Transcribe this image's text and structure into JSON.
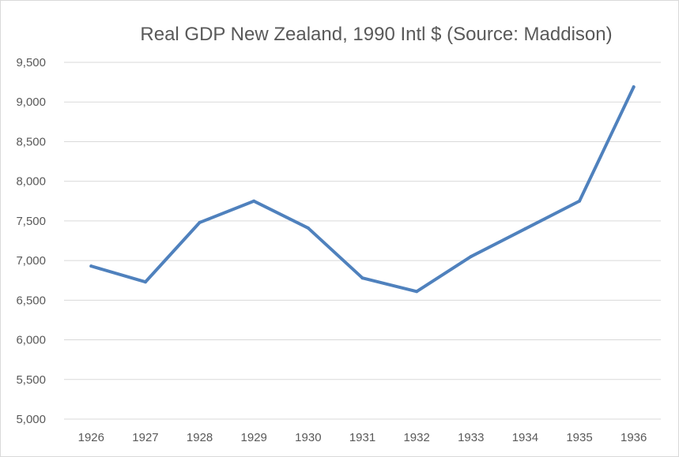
{
  "chart_data": {
    "type": "line",
    "title": "Real GDP New Zealand, 1990 Intl $ (Source: Maddison)",
    "xlabel": "",
    "ylabel": "",
    "categories": [
      "1926",
      "1927",
      "1928",
      "1929",
      "1930",
      "1931",
      "1932",
      "1933",
      "1934",
      "1935",
      "1936"
    ],
    "series": [
      {
        "name": "Real GDP",
        "values": [
          6930,
          6730,
          7480,
          7750,
          7410,
          6780,
          6610,
          7050,
          7400,
          7750,
          9190
        ],
        "color": "#4f81bd"
      }
    ],
    "ylim": [
      5000,
      9500
    ],
    "yticks": [
      5000,
      5500,
      6000,
      6500,
      7000,
      7500,
      8000,
      8500,
      9000,
      9500
    ],
    "ytick_labels": [
      "5,000",
      "5,500",
      "6,000",
      "6,500",
      "7,000",
      "7,500",
      "8,000",
      "8,500",
      "9,000",
      "9,500"
    ],
    "grid": true,
    "legend": "none"
  }
}
